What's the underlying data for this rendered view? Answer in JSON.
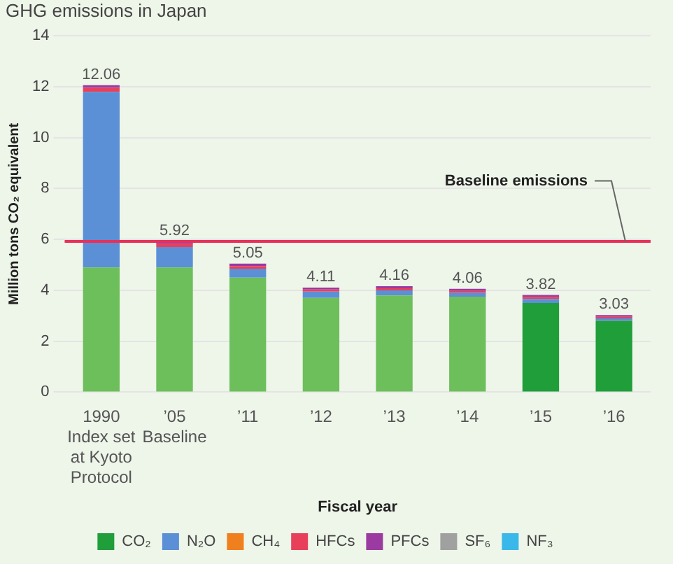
{
  "chart_data": {
    "type": "bar",
    "stacked": true,
    "title": "GHG emissions in Japan",
    "xlabel": "Fiscal year",
    "ylabel": "Million tons CO₂ equivalent",
    "categories": [
      "1990",
      "’05",
      "’11",
      "’12",
      "’13",
      "’14",
      "’15",
      "’16"
    ],
    "series": [
      {
        "name": "CO₂",
        "color": "#1f9e3a",
        "colors": [
          "#6cbf5a",
          "#6cbf5a",
          "#6cbf5a",
          "#6cbf5a",
          "#6cbf5a",
          "#6cbf5a",
          "#1f9e3a",
          "#1f9e3a"
        ],
        "values": [
          4.9,
          4.9,
          4.5,
          3.7,
          3.8,
          3.75,
          3.5,
          2.8
        ]
      },
      {
        "name": "N₂O",
        "color": "#5b8fd6",
        "values": [
          6.9,
          0.8,
          0.35,
          0.25,
          0.2,
          0.15,
          0.16,
          0.1
        ]
      },
      {
        "name": "CH₄",
        "color": "#f07f1e",
        "values": [
          null,
          null,
          null,
          null,
          null,
          null,
          null,
          null
        ]
      },
      {
        "name": "HFCs",
        "color": "#e8405a",
        "values": [
          0.16,
          0.12,
          0.1,
          0.08,
          0.08,
          0.08,
          0.08,
          0.06
        ]
      },
      {
        "name": "PFCs",
        "color": "#9b3aa0",
        "values": [
          0.1,
          0.1,
          0.1,
          0.08,
          0.08,
          0.08,
          0.08,
          0.07
        ]
      },
      {
        "name": "SF₆",
        "color": "#a0a0a0",
        "values": [
          null,
          null,
          null,
          null,
          null,
          null,
          null,
          null
        ]
      },
      {
        "name": "NF₃",
        "color": "#3ab8ea",
        "values": [
          null,
          null,
          null,
          null,
          null,
          null,
          null,
          null
        ]
      }
    ],
    "totals": [
      "12.06",
      "5.92",
      "5.05",
      "4.11",
      "4.16",
      "4.06",
      "3.82",
      "3.03"
    ],
    "ylim": [
      0,
      14
    ],
    "yticks": [
      0,
      2,
      4,
      6,
      8,
      10,
      12,
      14
    ],
    "grid": "y",
    "legend": "bottom",
    "ref_lines": [
      {
        "axis": "y",
        "value": 5.92,
        "label": "Baseline emissions",
        "color": "#e8305a"
      }
    ],
    "annotations": [
      "Index set at Kyoto Protocol",
      "Baseline"
    ]
  }
}
